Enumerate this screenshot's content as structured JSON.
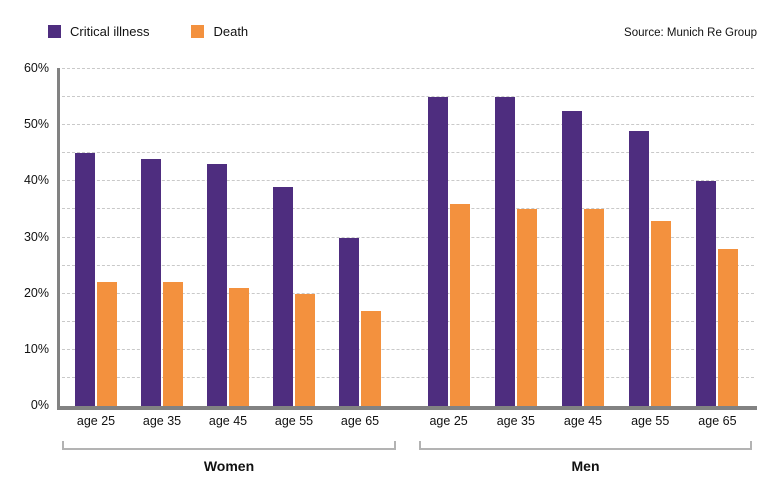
{
  "legend": [
    {
      "label": "Critical illness",
      "color": "#4e2d7f"
    },
    {
      "label": "Death",
      "color": "#f3913e"
    }
  ],
  "source": "Source: Munich Re Group",
  "colors": {
    "critical_illness": "#4e2d7f",
    "death": "#f3913e",
    "axis": "#828282",
    "gridline": "#c9c9c9",
    "bracket": "#b3b3b3"
  },
  "chart_data": {
    "type": "bar",
    "title": "",
    "xlabel": "",
    "ylabel": "",
    "ylim": [
      0,
      60
    ],
    "y_tick_step": 10,
    "grid_step": 5,
    "y_tick_suffix": "%",
    "grid": true,
    "legend_position": "top-left",
    "groups": [
      {
        "label": "Women",
        "categories": [
          "age 25",
          "age 35",
          "age 45",
          "age 55",
          "age 65"
        ],
        "series": [
          {
            "name": "Critical illness",
            "values": [
              45,
              44,
              43,
              39,
              30
            ]
          },
          {
            "name": "Death",
            "values": [
              22,
              22,
              21,
              20,
              17
            ]
          }
        ]
      },
      {
        "label": "Men",
        "categories": [
          "age 25",
          "age 35",
          "age 45",
          "age 55",
          "age 65"
        ],
        "series": [
          {
            "name": "Critical illness",
            "values": [
              55,
              55,
              52.5,
              49,
              40
            ]
          },
          {
            "name": "Death",
            "values": [
              36,
              35,
              35,
              33,
              28
            ]
          }
        ]
      }
    ]
  }
}
